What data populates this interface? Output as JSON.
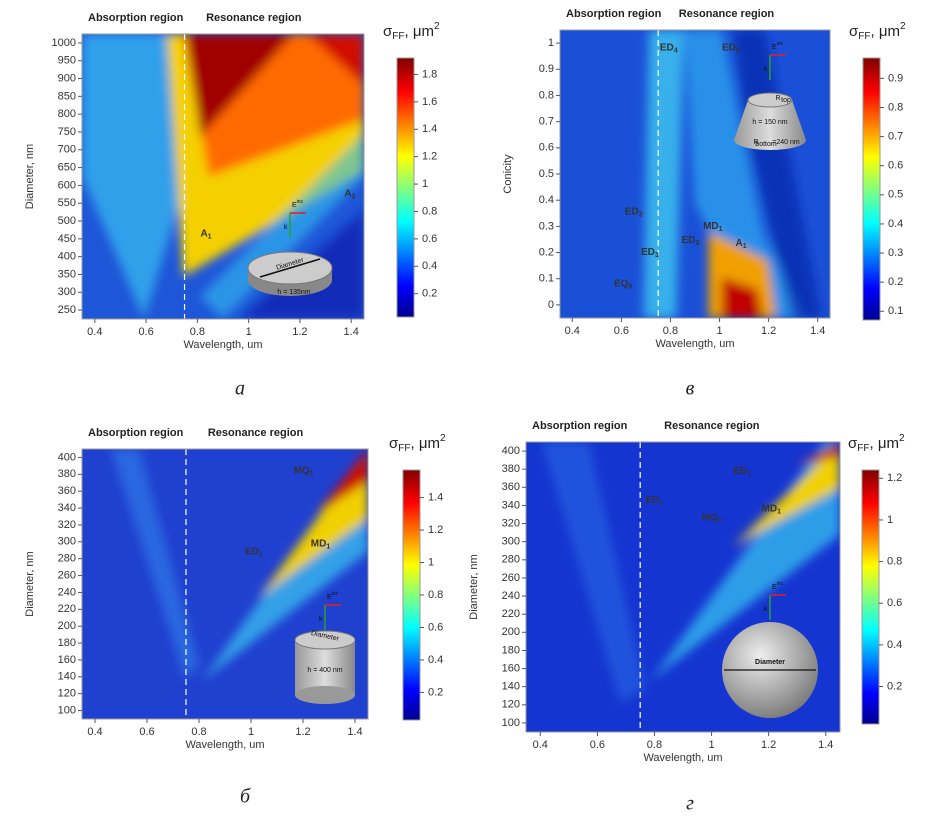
{
  "chart_data": [
    {
      "type": "heatmap",
      "panel_label": "а",
      "regions": [
        "Absorption region",
        "Resonance region"
      ],
      "xlabel": "Wavelength, um",
      "ylabel": "Diameter, nm",
      "xlim": [
        0.35,
        1.45
      ],
      "xticks": [
        0.4,
        0.6,
        0.8,
        1,
        1.2,
        1.4
      ],
      "ylim": [
        225,
        1025
      ],
      "yticks": [
        250,
        300,
        350,
        400,
        450,
        500,
        550,
        600,
        650,
        700,
        750,
        800,
        850,
        900,
        950,
        1000
      ],
      "divider": 0.75,
      "colorbar": {
        "symbol": "σ",
        "subscript": "FF",
        "unit": ", μm",
        "superscript": "2",
        "lim": [
          0.03,
          1.92
        ],
        "ticks": [
          0.2,
          0.4,
          0.6,
          0.8,
          1,
          1.2,
          1.4,
          1.6,
          1.8
        ]
      },
      "modes": [
        {
          "name": "A",
          "index": "1"
        },
        {
          "name": "A",
          "index": "2"
        }
      ],
      "inset": {
        "wave": "k",
        "field": "E",
        "field_sup": "inc",
        "labels": [
          "Diameter",
          "h = 135nm"
        ]
      }
    },
    {
      "type": "heatmap",
      "panel_label": "в",
      "regions": [
        "Absorption region",
        "Resonance region"
      ],
      "xlabel": "Wavelength, um",
      "ylabel": "Conicity",
      "xlim": [
        0.35,
        1.45
      ],
      "xticks": [
        0.4,
        0.6,
        0.8,
        1,
        1.2,
        1.4
      ],
      "ylim": [
        -0.05,
        1.05
      ],
      "yticks": [
        0,
        0.1,
        0.2,
        0.3,
        0.4,
        0.5,
        0.6,
        0.7,
        0.8,
        0.9,
        1
      ],
      "divider": 0.75,
      "colorbar": {
        "symbol": "σ",
        "subscript": "FF",
        "unit": ", μm",
        "superscript": "2",
        "lim": [
          0.07,
          0.97
        ],
        "ticks": [
          0.1,
          0.2,
          0.3,
          0.4,
          0.5,
          0.6,
          0.7,
          0.8,
          0.9
        ]
      },
      "modes": [
        {
          "name": "ED",
          "index": "4"
        },
        {
          "name": "ED",
          "index": "5"
        },
        {
          "name": "ED",
          "index": "2"
        },
        {
          "name": "ED",
          "index": "3"
        },
        {
          "name": "EQ",
          "index": "5"
        },
        {
          "name": "ED",
          "index": "3"
        },
        {
          "name": "MD",
          "index": "1"
        },
        {
          "name": "A",
          "index": "1"
        }
      ],
      "inset": {
        "wave": "k",
        "field": "E",
        "field_sup": "inc",
        "labels": [
          "R",
          "top",
          "h = 150 nm",
          "R",
          "bottom",
          "=240 nm"
        ]
      }
    },
    {
      "type": "heatmap",
      "panel_label": "б",
      "regions": [
        "Absorption region",
        "Resonance region"
      ],
      "xlabel": "Wavelength, um",
      "ylabel": "Diameter, nm",
      "xlim": [
        0.35,
        1.45
      ],
      "xticks": [
        0.4,
        0.6,
        0.8,
        1,
        1.2,
        1.4
      ],
      "ylim": [
        90,
        410
      ],
      "yticks": [
        100,
        120,
        140,
        160,
        180,
        200,
        220,
        240,
        260,
        280,
        300,
        320,
        340,
        360,
        380,
        400
      ],
      "divider": 0.75,
      "colorbar": {
        "symbol": "σ",
        "subscript": "FF",
        "unit": ", μm",
        "superscript": "2",
        "lim": [
          0.03,
          1.57
        ],
        "ticks": [
          0.2,
          0.4,
          0.6,
          0.8,
          1,
          1.2,
          1.4
        ]
      },
      "modes": [
        {
          "name": "MQ",
          "index": "1"
        },
        {
          "name": "ED",
          "index": "1"
        },
        {
          "name": "MD",
          "index": "1"
        }
      ],
      "inset": {
        "wave": "k",
        "field": "E",
        "field_sup": "inc",
        "labels": [
          "Diameter",
          "h = 400 nm"
        ]
      }
    },
    {
      "type": "heatmap",
      "panel_label": "г",
      "regions": [
        "Absorption region",
        "Resonance region"
      ],
      "xlabel": "Wavelength, um",
      "ylabel": "Diameter, nm",
      "xlim": [
        0.35,
        1.45
      ],
      "xticks": [
        0.4,
        0.6,
        0.8,
        1,
        1.2,
        1.4
      ],
      "ylim": [
        90,
        410
      ],
      "yticks": [
        100,
        120,
        140,
        160,
        180,
        200,
        220,
        240,
        260,
        280,
        300,
        320,
        340,
        360,
        380,
        400
      ],
      "divider": 0.75,
      "colorbar": {
        "symbol": "σ",
        "subscript": "FF",
        "unit": ", μm",
        "superscript": "2",
        "lim": [
          0.02,
          1.24
        ],
        "ticks": [
          0.2,
          0.4,
          0.6,
          0.8,
          1,
          1.2
        ]
      },
      "modes": [
        {
          "name": "ED",
          "index": "1"
        },
        {
          "name": "MQ",
          "index": "1"
        },
        {
          "name": "ED",
          "index": "1"
        },
        {
          "name": "MD",
          "index": "1"
        }
      ],
      "inset": {
        "wave": "k",
        "field": "E",
        "field_sup": "inc",
        "labels": [
          "Diameter"
        ]
      }
    }
  ]
}
